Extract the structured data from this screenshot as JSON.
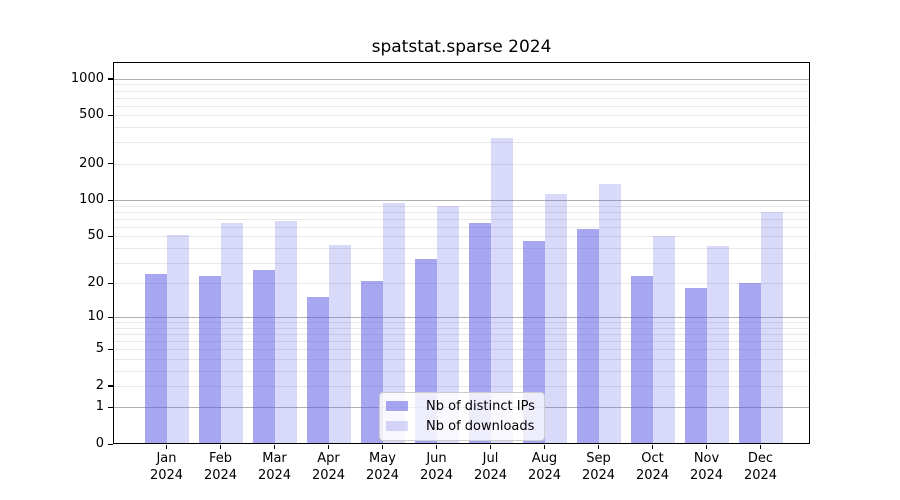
{
  "chart_data": {
    "type": "bar",
    "title": "spatstat.sparse 2024",
    "x_categories": [
      "Jan",
      "Feb",
      "Mar",
      "Apr",
      "May",
      "Jun",
      "Jul",
      "Aug",
      "Sep",
      "Oct",
      "Nov",
      "Dec"
    ],
    "x_year": "2024",
    "series": [
      {
        "name": "Nb of distinct IPs",
        "color": "rgba(95,95,230,0.55)",
        "values": [
          24,
          23,
          26,
          15,
          21,
          32,
          64,
          46,
          57,
          23,
          18,
          20
        ]
      },
      {
        "name": "Nb of downloads",
        "color": "rgba(95,95,230,0.24)",
        "values": [
          51,
          65,
          67,
          42,
          95,
          90,
          325,
          113,
          135,
          50,
          41,
          79
        ]
      }
    ],
    "y_scale": "log1p",
    "y_ticks": [
      0,
      1,
      2,
      5,
      10,
      20,
      50,
      100,
      200,
      500,
      1000
    ],
    "y_major_gridlines": [
      1,
      10,
      100,
      1000
    ],
    "y_minor_gridlines": [
      2,
      3,
      4,
      5,
      6,
      7,
      8,
      9,
      20,
      30,
      40,
      50,
      60,
      70,
      80,
      90,
      200,
      300,
      400,
      500,
      600,
      700,
      800,
      900
    ],
    "ylim": [
      0,
      1400
    ],
    "grid": true,
    "legend_position": "bottom-center"
  },
  "colors": {
    "background": "#ffffff",
    "bar_distinct_ips": "rgba(95,95,230,0.55)",
    "bar_downloads": "rgba(95,95,230,0.24)",
    "major_grid": "#b0b0b0",
    "minor_grid": "#e8e8e8",
    "spine": "#000000",
    "legend_bg": "rgba(255,255,255,0.8)",
    "legend_border": "#cccccc"
  }
}
